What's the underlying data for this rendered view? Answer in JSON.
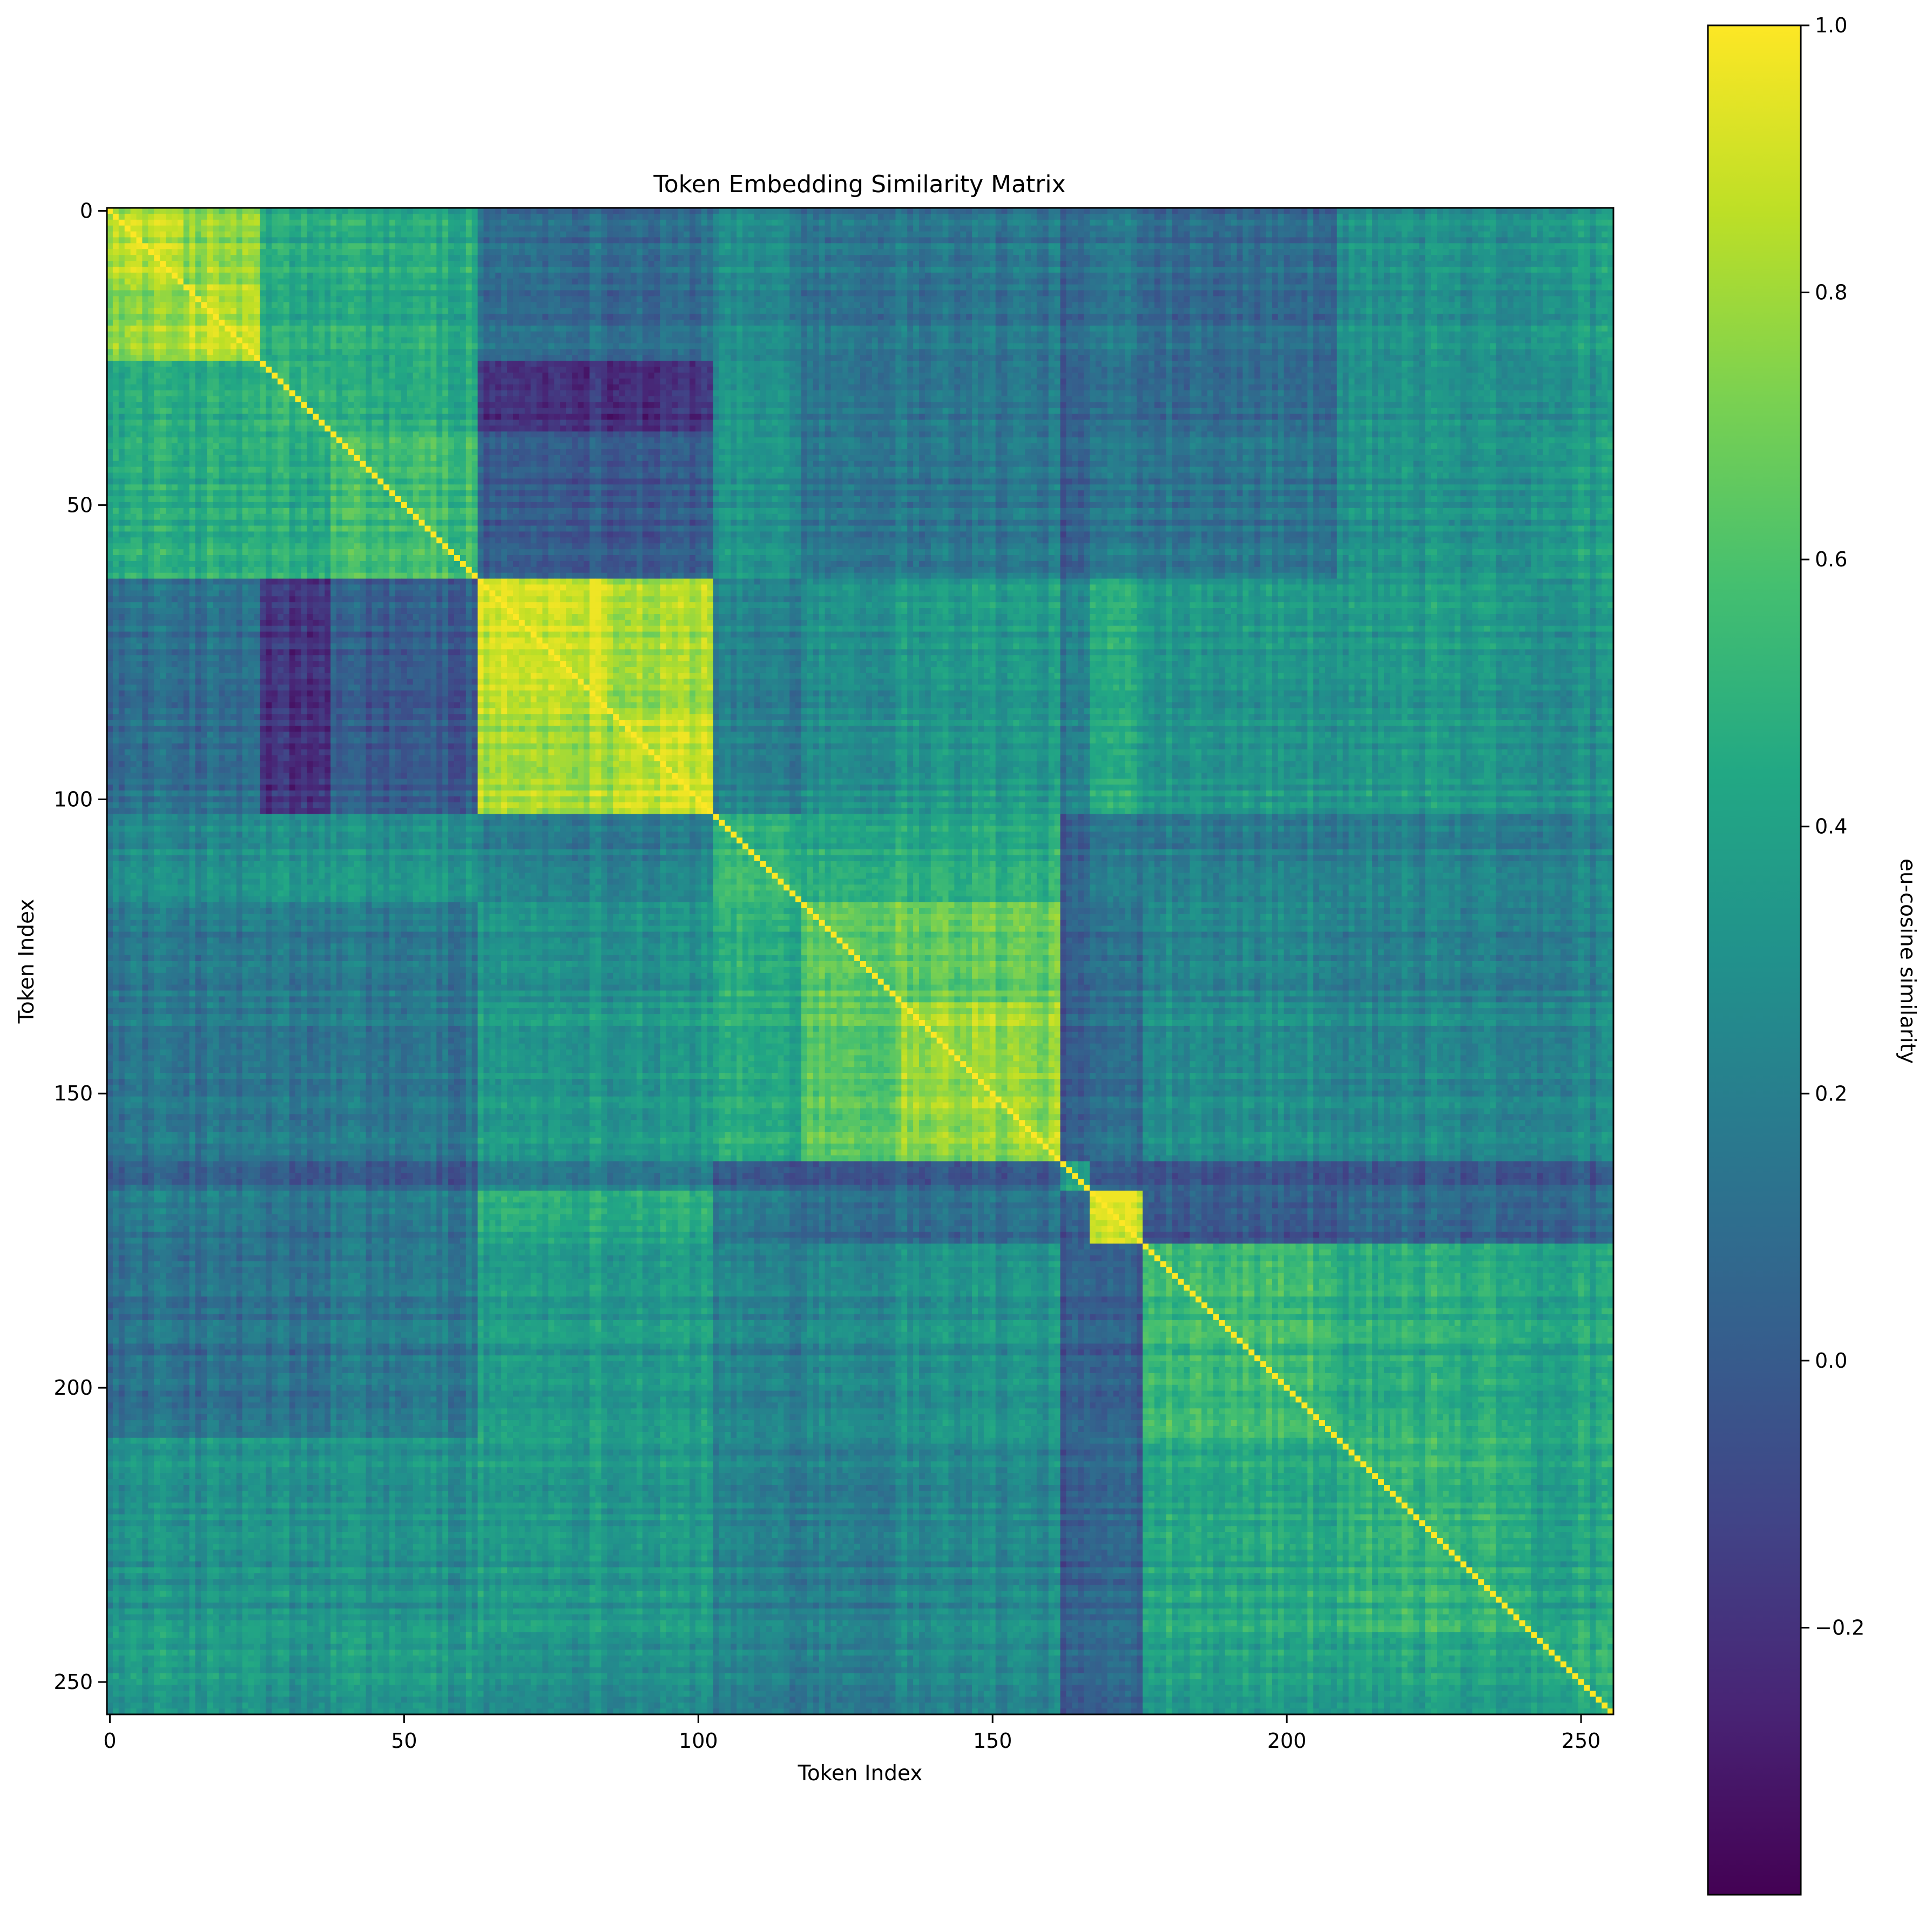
{
  "chart_data": {
    "type": "heatmap",
    "title": "Token Embedding Similarity Matrix",
    "xlabel": "Token Index",
    "ylabel": "Token Index",
    "colorbar_label": "eu-cosine similarity",
    "colormap": "viridis",
    "size": 256,
    "xlim": [
      0,
      256
    ],
    "ylim": [
      256,
      0
    ],
    "vmin": -0.4,
    "vmax": 1.0,
    "x_ticks": [
      0,
      50,
      100,
      150,
      200,
      250
    ],
    "x_tick_labels": [
      "0",
      "50",
      "100",
      "150",
      "200",
      "250"
    ],
    "y_ticks": [
      0,
      50,
      100,
      150,
      200,
      250
    ],
    "y_tick_labels": [
      "0",
      "50",
      "100",
      "150",
      "200",
      "250"
    ],
    "colorbar_ticks": [
      1.0,
      0.8,
      0.6,
      0.4,
      0.2,
      0.0,
      -0.2
    ],
    "colorbar_tick_labels": [
      "1.0",
      "0.8",
      "0.6",
      "0.4",
      "0.2",
      "0.0",
      "−0.2"
    ],
    "diagonal_value": 1.0,
    "cluster_boundaries": [
      0,
      13,
      26,
      38,
      63,
      86,
      103,
      118,
      135,
      155,
      162,
      167,
      176,
      209,
      242,
      256
    ],
    "block_values": [
      [
        0.85,
        0.76,
        0.45,
        0.45,
        0.1,
        0.1,
        0.25,
        0.15,
        0.15,
        0.15,
        0.05,
        0.15,
        0.1,
        0.3,
        0.35
      ],
      [
        0.76,
        0.85,
        0.45,
        0.45,
        0.1,
        0.1,
        0.25,
        0.15,
        0.15,
        0.15,
        0.05,
        0.15,
        0.1,
        0.3,
        0.35
      ],
      [
        0.45,
        0.45,
        0.5,
        0.45,
        -0.2,
        -0.2,
        0.3,
        0.15,
        0.15,
        0.15,
        0.0,
        0.1,
        0.1,
        0.3,
        0.3
      ],
      [
        0.45,
        0.45,
        0.45,
        0.55,
        0.0,
        0.0,
        0.3,
        0.15,
        0.15,
        0.15,
        0.0,
        0.15,
        0.15,
        0.3,
        0.35
      ],
      [
        0.1,
        0.1,
        -0.2,
        0.0,
        0.9,
        0.82,
        0.2,
        0.3,
        0.35,
        0.35,
        0.2,
        0.45,
        0.35,
        0.35,
        0.3
      ],
      [
        0.1,
        0.1,
        -0.2,
        0.0,
        0.82,
        0.9,
        0.2,
        0.3,
        0.35,
        0.35,
        0.2,
        0.45,
        0.35,
        0.35,
        0.3
      ],
      [
        0.25,
        0.25,
        0.3,
        0.3,
        0.2,
        0.2,
        0.5,
        0.45,
        0.45,
        0.45,
        0.0,
        0.15,
        0.2,
        0.2,
        0.2
      ],
      [
        0.15,
        0.15,
        0.15,
        0.15,
        0.3,
        0.3,
        0.45,
        0.65,
        0.65,
        0.65,
        0.0,
        0.1,
        0.25,
        0.2,
        0.2
      ],
      [
        0.15,
        0.15,
        0.15,
        0.15,
        0.35,
        0.35,
        0.45,
        0.65,
        0.8,
        0.75,
        0.0,
        0.1,
        0.3,
        0.25,
        0.25
      ],
      [
        0.15,
        0.15,
        0.15,
        0.15,
        0.35,
        0.35,
        0.45,
        0.65,
        0.75,
        0.8,
        0.0,
        0.1,
        0.3,
        0.25,
        0.25
      ],
      [
        0.05,
        0.05,
        0.0,
        0.0,
        0.2,
        0.2,
        0.0,
        0.0,
        0.0,
        0.0,
        0.4,
        0.0,
        0.0,
        0.0,
        0.0
      ],
      [
        0.15,
        0.15,
        0.1,
        0.15,
        0.45,
        0.45,
        0.15,
        0.1,
        0.1,
        0.1,
        0.0,
        0.9,
        0.0,
        0.05,
        0.05
      ],
      [
        0.1,
        0.1,
        0.1,
        0.15,
        0.35,
        0.35,
        0.2,
        0.25,
        0.3,
        0.3,
        0.0,
        0.0,
        0.55,
        0.45,
        0.4
      ],
      [
        0.3,
        0.3,
        0.3,
        0.3,
        0.35,
        0.35,
        0.2,
        0.2,
        0.25,
        0.25,
        0.0,
        0.05,
        0.45,
        0.5,
        0.4
      ],
      [
        0.35,
        0.35,
        0.3,
        0.35,
        0.3,
        0.3,
        0.2,
        0.2,
        0.25,
        0.25,
        0.0,
        0.05,
        0.4,
        0.4,
        0.45
      ]
    ],
    "notes": [
      "Square similarity matrix with a bright diagonal (value 1.0).",
      "Strong blocks: 63-103 (about 0.85-0.95), 0-13 (about 0.8), 118-162 (about 0.6-0.8), 167-176 (about 0.9)."
    ]
  },
  "icons": {}
}
